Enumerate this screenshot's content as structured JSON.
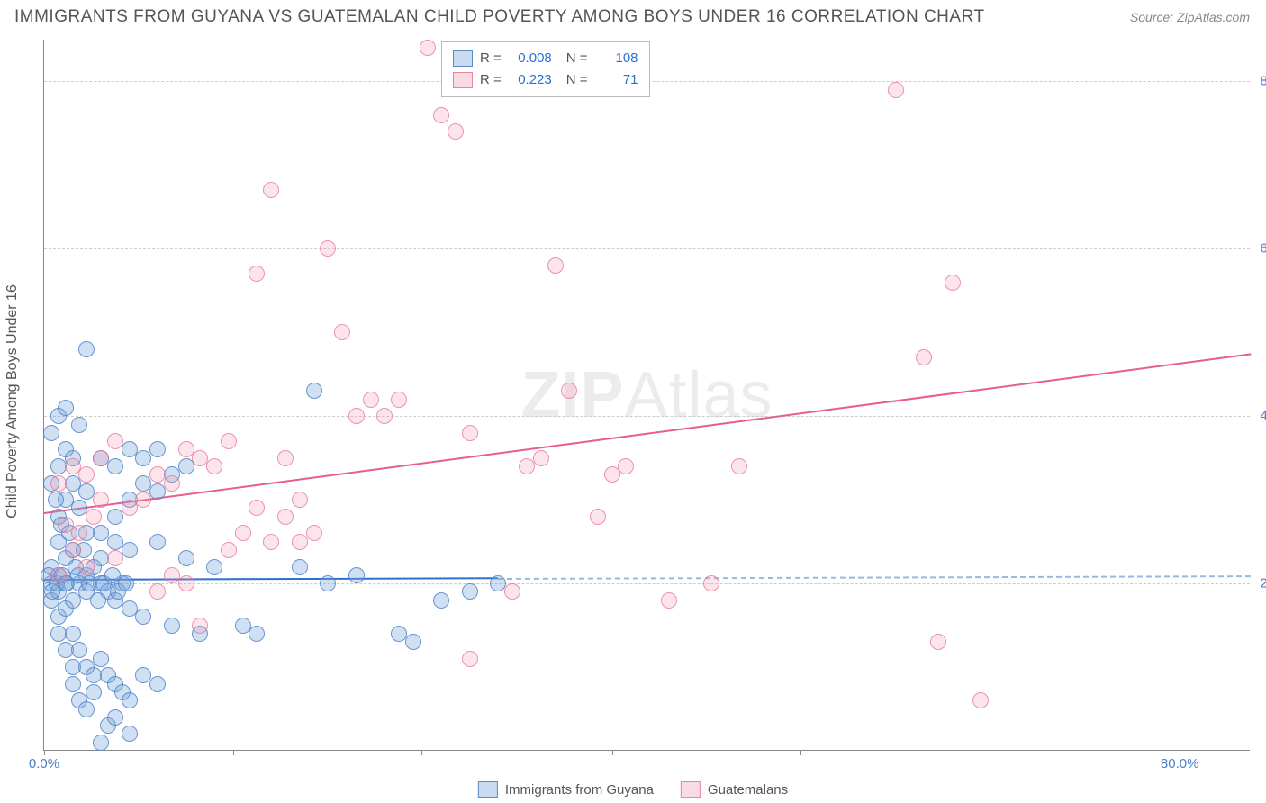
{
  "header": {
    "title": "IMMIGRANTS FROM GUYANA VS GUATEMALAN CHILD POVERTY AMONG BOYS UNDER 16 CORRELATION CHART",
    "source": "Source: ZipAtlas.com"
  },
  "chart": {
    "type": "scatter",
    "y_axis_label": "Child Poverty Among Boys Under 16",
    "xlim": [
      0,
      85
    ],
    "ylim": [
      0,
      85
    ],
    "xticks": [
      {
        "v": 0,
        "label": "0.0%"
      },
      {
        "v": 80,
        "label": "80.0%"
      }
    ],
    "xtick_marks": [
      0,
      13.3,
      26.6,
      40,
      53.3,
      66.6,
      80
    ],
    "yticks": [
      {
        "v": 20,
        "label": "20.0%"
      },
      {
        "v": 40,
        "label": "40.0%"
      },
      {
        "v": 60,
        "label": "60.0%"
      },
      {
        "v": 80,
        "label": "80.0%"
      }
    ],
    "grid_color": "#cccccc",
    "axis_color": "#888888",
    "tick_label_color": "#4a7fc9",
    "background_color": "#ffffff",
    "point_radius": 9,
    "series": {
      "blue": {
        "fill": "rgba(120,165,220,0.35)",
        "stroke": "rgba(80,130,200,0.8)",
        "points": [
          [
            0.5,
            20
          ],
          [
            0.5,
            18
          ],
          [
            0.5,
            22
          ],
          [
            1,
            19
          ],
          [
            1,
            16
          ],
          [
            1,
            25
          ],
          [
            1,
            21
          ],
          [
            1.5,
            20
          ],
          [
            1.5,
            17
          ],
          [
            1.5,
            23
          ],
          [
            1,
            14
          ],
          [
            1.5,
            12
          ],
          [
            2,
            10
          ],
          [
            2,
            8
          ],
          [
            2.5,
            6
          ],
          [
            3,
            5
          ],
          [
            3.5,
            7
          ],
          [
            4,
            1
          ],
          [
            4.5,
            3
          ],
          [
            5,
            4
          ],
          [
            6,
            2
          ],
          [
            2,
            14
          ],
          [
            2.5,
            12
          ],
          [
            3,
            10
          ],
          [
            3.5,
            9
          ],
          [
            4,
            11
          ],
          [
            4.5,
            9
          ],
          [
            5,
            8
          ],
          [
            5.5,
            7
          ],
          [
            6,
            6
          ],
          [
            7,
            9
          ],
          [
            8,
            8
          ],
          [
            2,
            18
          ],
          [
            2.5,
            20
          ],
          [
            3,
            21
          ],
          [
            3,
            19
          ],
          [
            3.5,
            22
          ],
          [
            4,
            20
          ],
          [
            4.5,
            19
          ],
          [
            5,
            18
          ],
          [
            5.5,
            20
          ],
          [
            1,
            28
          ],
          [
            1.5,
            30
          ],
          [
            2,
            32
          ],
          [
            2.5,
            29
          ],
          [
            3,
            31
          ],
          [
            1,
            34
          ],
          [
            1.5,
            36
          ],
          [
            2,
            35
          ],
          [
            1,
            40
          ],
          [
            1.5,
            41
          ],
          [
            0.5,
            38
          ],
          [
            2.5,
            39
          ],
          [
            4,
            26
          ],
          [
            5,
            28
          ],
          [
            6,
            30
          ],
          [
            7,
            32
          ],
          [
            8,
            31
          ],
          [
            9,
            33
          ],
          [
            10,
            34
          ],
          [
            4,
            35
          ],
          [
            5,
            34
          ],
          [
            6,
            36
          ],
          [
            7,
            35
          ],
          [
            8,
            36
          ],
          [
            3,
            48
          ],
          [
            8,
            25
          ],
          [
            10,
            23
          ],
          [
            12,
            22
          ],
          [
            14,
            15
          ],
          [
            15,
            14
          ],
          [
            18,
            22
          ],
          [
            19,
            43
          ],
          [
            20,
            20
          ],
          [
            22,
            21
          ],
          [
            25,
            14
          ],
          [
            26,
            13
          ],
          [
            28,
            18
          ],
          [
            30,
            19
          ],
          [
            32,
            20
          ],
          [
            6,
            17
          ],
          [
            7,
            16
          ],
          [
            9,
            15
          ],
          [
            11,
            14
          ],
          [
            2,
            24
          ],
          [
            3,
            26
          ],
          [
            4,
            23
          ],
          [
            5,
            25
          ],
          [
            6,
            24
          ],
          [
            0.5,
            32
          ],
          [
            0.8,
            30
          ],
          [
            1.2,
            27
          ],
          [
            1.8,
            26
          ],
          [
            2.2,
            22
          ],
          [
            2.8,
            24
          ],
          [
            3.2,
            20
          ],
          [
            3.8,
            18
          ],
          [
            0.3,
            21
          ],
          [
            0.6,
            19
          ],
          [
            0.9,
            20
          ],
          [
            1.3,
            21
          ],
          [
            1.6,
            20
          ],
          [
            2.4,
            21
          ],
          [
            4.2,
            20
          ],
          [
            4.8,
            21
          ],
          [
            5.2,
            19
          ],
          [
            5.8,
            20
          ]
        ]
      },
      "pink": {
        "fill": "rgba(240,150,175,0.25)",
        "stroke": "rgba(230,110,150,0.7)",
        "points": [
          [
            1,
            21
          ],
          [
            1.5,
            27
          ],
          [
            2,
            24
          ],
          [
            2.5,
            26
          ],
          [
            3,
            22
          ],
          [
            3.5,
            28
          ],
          [
            4,
            30
          ],
          [
            5,
            23
          ],
          [
            6,
            29
          ],
          [
            1,
            32
          ],
          [
            2,
            34
          ],
          [
            3,
            33
          ],
          [
            4,
            35
          ],
          [
            5,
            37
          ],
          [
            7,
            30
          ],
          [
            8,
            33
          ],
          [
            9,
            32
          ],
          [
            10,
            36
          ],
          [
            11,
            35
          ],
          [
            12,
            34
          ],
          [
            13,
            37
          ],
          [
            13,
            24
          ],
          [
            14,
            26
          ],
          [
            15,
            29
          ],
          [
            16,
            25
          ],
          [
            17,
            28
          ],
          [
            18,
            30
          ],
          [
            19,
            26
          ],
          [
            8,
            19
          ],
          [
            9,
            21
          ],
          [
            10,
            20
          ],
          [
            11,
            15
          ],
          [
            15,
            57
          ],
          [
            16,
            67
          ],
          [
            17,
            35
          ],
          [
            18,
            25
          ],
          [
            20,
            60
          ],
          [
            21,
            50
          ],
          [
            22,
            40
          ],
          [
            23,
            42
          ],
          [
            24,
            40
          ],
          [
            25,
            42
          ],
          [
            27,
            84
          ],
          [
            28,
            76
          ],
          [
            29,
            74
          ],
          [
            30,
            38
          ],
          [
            30,
            11
          ],
          [
            33,
            19
          ],
          [
            34,
            34
          ],
          [
            35,
            35
          ],
          [
            36,
            58
          ],
          [
            37,
            43
          ],
          [
            39,
            28
          ],
          [
            40,
            33
          ],
          [
            41,
            34
          ],
          [
            44,
            18
          ],
          [
            47,
            20
          ],
          [
            49,
            34
          ],
          [
            60,
            79
          ],
          [
            62,
            47
          ],
          [
            63,
            13
          ],
          [
            64,
            56
          ],
          [
            66,
            6
          ]
        ]
      }
    },
    "trendlines": {
      "blue": {
        "y_start": 20.5,
        "y_end": 21.0,
        "x_solid_end": 32,
        "color_solid": "#2e6fd0",
        "color_dash": "#9ab8e0"
      },
      "pink": {
        "y_start": 28.5,
        "y_end": 47.5,
        "x_end": 85,
        "color": "#e85d8c"
      }
    }
  },
  "legend_top": {
    "rows": [
      {
        "swatch": "blue",
        "r_label": "R =",
        "r_value": "0.008",
        "n_label": "N =",
        "n_value": "108"
      },
      {
        "swatch": "pink",
        "r_label": "R =",
        "r_value": "0.223",
        "n_label": "N =",
        "n_value": "71"
      }
    ]
  },
  "legend_bottom": {
    "items": [
      {
        "swatch": "blue",
        "label": "Immigrants from Guyana"
      },
      {
        "swatch": "pink",
        "label": "Guatemalans"
      }
    ]
  },
  "watermark": {
    "bold": "ZIP",
    "light": "Atlas"
  }
}
